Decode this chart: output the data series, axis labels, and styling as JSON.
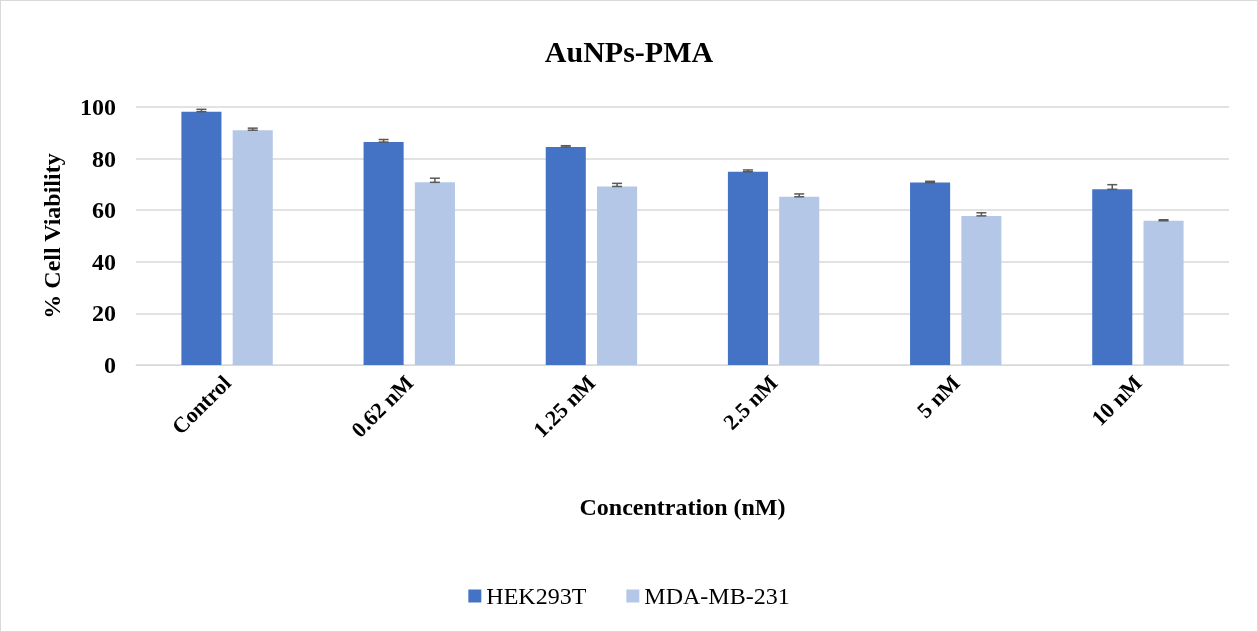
{
  "chart_data": {
    "type": "bar",
    "title": "AuNPs-PMA",
    "xlabel": "Concentration (nM)",
    "ylabel": "% Cell Viability",
    "categories": [
      "Control",
      "0.62 nM",
      "1.25 nM",
      "2.5 nM",
      "5 nM",
      "10 nM"
    ],
    "series": [
      {
        "name": "HEK293T",
        "color": "#4472c4",
        "values": [
          98.2,
          86.4,
          84.5,
          74.9,
          70.7,
          68.1
        ],
        "errors": [
          [
            98.2,
            99.1
          ],
          [
            86.4,
            87.4
          ],
          [
            84.5,
            85
          ],
          [
            74.9,
            75.6
          ],
          [
            70.7,
            71.2
          ],
          [
            68.1,
            69.9
          ]
        ]
      },
      {
        "name": "MDA-MB-231",
        "color": "#b4c7e7",
        "values": [
          91,
          70.8,
          69.2,
          65.2,
          57.8,
          55.9
        ],
        "errors": [
          [
            91,
            91.8
          ],
          [
            70.8,
            72.4
          ],
          [
            69.2,
            70.4
          ],
          [
            65.2,
            66.3
          ],
          [
            57.8,
            59
          ],
          [
            55.9,
            56.3
          ]
        ]
      }
    ],
    "ylim": [
      0,
      100
    ],
    "yticks": [
      0,
      20,
      40,
      60,
      80,
      100
    ],
    "grid": "y",
    "legend": "bottom"
  }
}
